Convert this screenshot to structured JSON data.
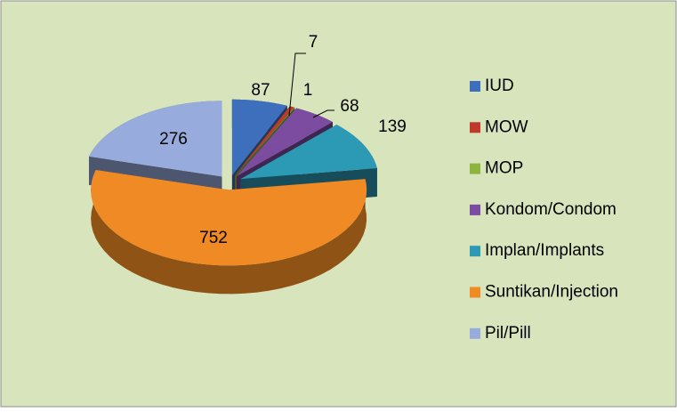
{
  "chart_data": {
    "type": "pie",
    "three_d": true,
    "exploded": true,
    "categories": [
      "IUD",
      "MOW",
      "MOP",
      "Kondom/Condom",
      "Implan/Implants",
      "Suntikan/Injection",
      "Pil/Pill"
    ],
    "values": [
      87,
      7,
      1,
      68,
      139,
      752,
      276
    ],
    "colors": [
      "#3d6fbd",
      "#c0392b",
      "#8db340",
      "#7b4c9f",
      "#2d9ab5",
      "#f08a24",
      "#97acdc"
    ],
    "legend": "right"
  }
}
